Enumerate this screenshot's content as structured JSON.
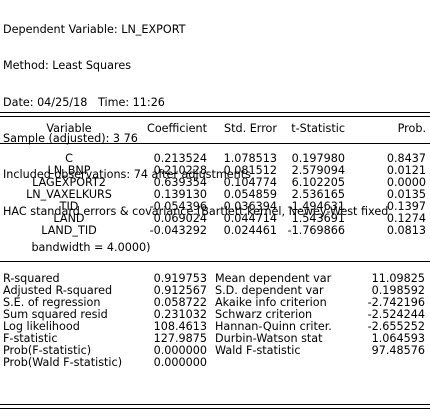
{
  "header": {
    "lines": [
      "Dependent Variable: LN_EXPORT",
      "Method: Least Squares",
      "Date: 04/25/18   Time: 11:26",
      "Sample (adjusted): 3 76",
      "Included observations: 74 after adjustments",
      "HAC standard errors & covariance (Bartlett kernel, Newey-West fixed",
      "        bandwidth = 4.0000)"
    ]
  },
  "coef_table": {
    "columns": [
      "Variable",
      "Coefficient",
      "Std. Error",
      "t-Statistic",
      "Prob."
    ],
    "rows": [
      [
        "C",
        "0.213524",
        "1.078513",
        "0.197980",
        "0.8437"
      ],
      [
        "LN_BNP",
        "0.210228",
        "0.081512",
        "2.579094",
        "0.0121"
      ],
      [
        "LAGEXPORT2",
        "0.639354",
        "0.104774",
        "6.102205",
        "0.0000"
      ],
      [
        "LN_VAXELKURS",
        "0.139130",
        "0.054859",
        "2.536165",
        "0.0135"
      ],
      [
        "TID",
        "-0.054396",
        "0.036394",
        "-1.494631",
        "0.1397"
      ],
      [
        "LAND",
        "0.069024",
        "0.044714",
        "1.543691",
        "0.1274"
      ],
      [
        "LAND_TID",
        "-0.043292",
        "0.024461",
        "-1.769866",
        "0.0813"
      ]
    ]
  },
  "stats": {
    "rows": [
      [
        "R-squared",
        "0.919753",
        "Mean dependent var",
        "11.09825"
      ],
      [
        "Adjusted R-squared",
        "0.912567",
        "S.D. dependent var",
        "0.198592"
      ],
      [
        "S.E. of regression",
        "0.058722",
        "Akaike info criterion",
        "-2.742196"
      ],
      [
        "Sum squared resid",
        "0.231032",
        "Schwarz criterion",
        "-2.524244"
      ],
      [
        "Log likelihood",
        "108.4613",
        "Hannan-Quinn criter.",
        "-2.655252"
      ],
      [
        "F-statistic",
        "127.9875",
        "Durbin-Watson stat",
        "1.064593"
      ],
      [
        "Prob(F-statistic)",
        "0.000000",
        "Wald F-statistic",
        "97.48576"
      ],
      [
        "Prob(Wald F-statistic)",
        "0.000000",
        "",
        ""
      ]
    ]
  }
}
